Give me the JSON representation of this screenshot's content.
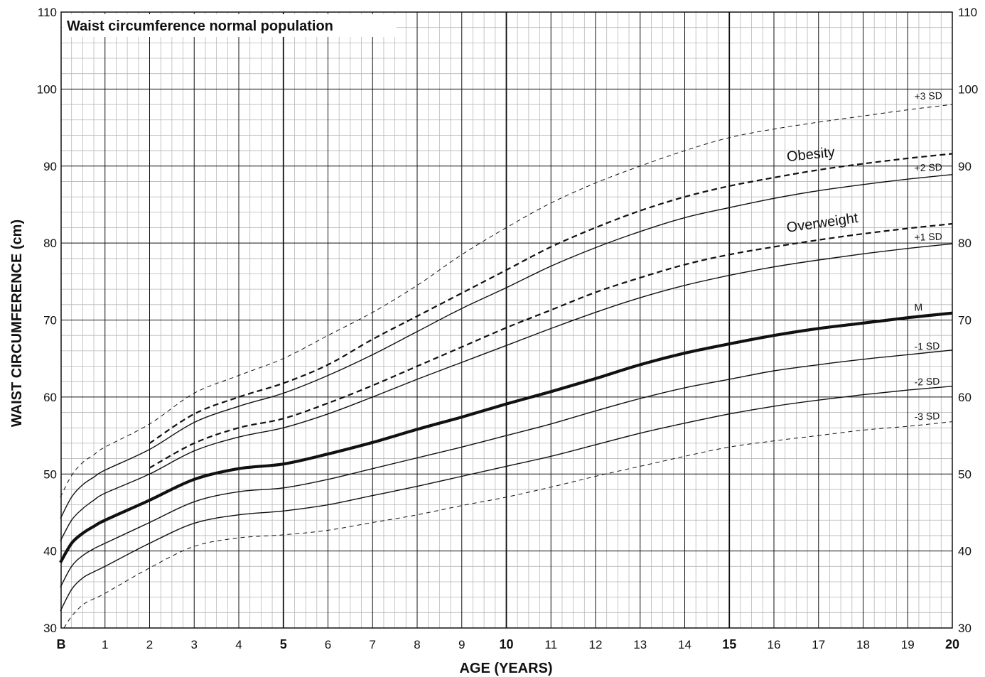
{
  "chart_data": {
    "type": "line",
    "title": "Waist circumference normal population",
    "xlabel": "AGE (YEARS)",
    "ylabel": "WAIST CIRCUMFERENCE (cm)",
    "xlim": [
      0,
      20
    ],
    "ylim": [
      30,
      110
    ],
    "grid": true,
    "x_ticks": [
      {
        "v": 0,
        "label": "B",
        "bold": true
      },
      {
        "v": 1,
        "label": "1"
      },
      {
        "v": 2,
        "label": "2"
      },
      {
        "v": 3,
        "label": "3"
      },
      {
        "v": 4,
        "label": "4"
      },
      {
        "v": 5,
        "label": "5",
        "bold": true
      },
      {
        "v": 6,
        "label": "6"
      },
      {
        "v": 7,
        "label": "7"
      },
      {
        "v": 8,
        "label": "8"
      },
      {
        "v": 9,
        "label": "9"
      },
      {
        "v": 10,
        "label": "10",
        "bold": true
      },
      {
        "v": 11,
        "label": "11"
      },
      {
        "v": 12,
        "label": "12"
      },
      {
        "v": 13,
        "label": "13"
      },
      {
        "v": 14,
        "label": "14"
      },
      {
        "v": 15,
        "label": "15",
        "bold": true
      },
      {
        "v": 16,
        "label": "16"
      },
      {
        "v": 17,
        "label": "17"
      },
      {
        "v": 18,
        "label": "18"
      },
      {
        "v": 19,
        "label": "19"
      },
      {
        "v": 20,
        "label": "20",
        "bold": true
      }
    ],
    "y_ticks": [
      "30",
      "40",
      "50",
      "60",
      "70",
      "80",
      "90",
      "100",
      "110"
    ],
    "series": [
      {
        "name": "+3 SD",
        "style": "dashed-thin",
        "label_at": [
          19.15,
          98.6
        ],
        "x": [
          0.0,
          0.25,
          0.5,
          0.75,
          1,
          2,
          3,
          4,
          5,
          6,
          7,
          8,
          9,
          10,
          11,
          12,
          13,
          14,
          15,
          16,
          17,
          18,
          19,
          20
        ],
        "y": [
          47,
          49.8,
          51.5,
          52.5,
          53.5,
          56.5,
          60.5,
          62.8,
          65,
          68,
          71,
          74.5,
          78.5,
          82,
          85.2,
          87.8,
          90,
          92,
          93.7,
          94.8,
          95.7,
          96.5,
          97.3,
          98
        ]
      },
      {
        "name": "Obesity",
        "style": "dashed-thick",
        "label_at": [
          16.3,
          90.6
        ],
        "label_rot": -6,
        "x": [
          2,
          3,
          4,
          5,
          6,
          7,
          8,
          9,
          10,
          11,
          12,
          13,
          14,
          15,
          16,
          17,
          18,
          19,
          20
        ],
        "y": [
          54,
          57.8,
          60,
          61.8,
          64.2,
          67.5,
          70.5,
          73.5,
          76.5,
          79.5,
          82,
          84.2,
          86,
          87.4,
          88.5,
          89.5,
          90.3,
          91,
          91.6
        ]
      },
      {
        "name": "+2 SD",
        "style": "solid",
        "label_at": [
          19.15,
          89.3
        ],
        "x": [
          0.0,
          0.25,
          0.5,
          0.75,
          1,
          2,
          3,
          4,
          5,
          6,
          7,
          8,
          9,
          10,
          11,
          12,
          13,
          14,
          15,
          16,
          17,
          18,
          19,
          20
        ],
        "y": [
          44.2,
          47,
          48.6,
          49.6,
          50.5,
          53.2,
          56.7,
          58.8,
          60.5,
          62.8,
          65.5,
          68.5,
          71.5,
          74.2,
          77,
          79.4,
          81.5,
          83.3,
          84.6,
          85.8,
          86.8,
          87.6,
          88.3,
          88.9
        ]
      },
      {
        "name": "Overweight",
        "style": "dashed-thick",
        "label_at": [
          16.3,
          81.4
        ],
        "label_rot": -8,
        "x": [
          2,
          3,
          4,
          5,
          6,
          7,
          8,
          9,
          10,
          11,
          12,
          13,
          14,
          15,
          16,
          17,
          18,
          19,
          20
        ],
        "y": [
          50.8,
          54,
          56,
          57.2,
          59.2,
          61.5,
          64,
          66.5,
          69,
          71.3,
          73.6,
          75.5,
          77.2,
          78.5,
          79.5,
          80.4,
          81.2,
          81.9,
          82.5
        ]
      },
      {
        "name": "+1 SD",
        "style": "solid",
        "label_at": [
          19.15,
          80.3
        ],
        "x": [
          0.0,
          0.25,
          0.5,
          0.75,
          1,
          2,
          3,
          4,
          5,
          6,
          7,
          8,
          9,
          10,
          11,
          12,
          13,
          14,
          15,
          16,
          17,
          18,
          19,
          20
        ],
        "y": [
          41.3,
          44,
          45.5,
          46.6,
          47.5,
          50,
          53,
          54.8,
          56,
          57.8,
          60,
          62.3,
          64.5,
          66.7,
          68.9,
          71,
          72.9,
          74.5,
          75.8,
          76.9,
          77.8,
          78.6,
          79.3,
          79.9
        ]
      },
      {
        "name": "M",
        "style": "thick",
        "label_at": [
          19.15,
          71.2
        ],
        "x": [
          0.0,
          0.25,
          0.5,
          0.75,
          1,
          2,
          3,
          4,
          5,
          6,
          7,
          8,
          9,
          10,
          11,
          12,
          13,
          14,
          15,
          16,
          17,
          18,
          19,
          20
        ],
        "y": [
          38.5,
          41,
          42.3,
          43.2,
          44,
          46.6,
          49.3,
          50.7,
          51.3,
          52.6,
          54.1,
          55.8,
          57.4,
          59.1,
          60.7,
          62.4,
          64.2,
          65.7,
          66.9,
          68,
          68.9,
          69.6,
          70.3,
          70.9
        ]
      },
      {
        "name": "-1 SD",
        "style": "solid",
        "label_at": [
          19.15,
          66.1
        ],
        "x": [
          0.0,
          0.25,
          0.5,
          0.75,
          1,
          2,
          3,
          4,
          5,
          6,
          7,
          8,
          9,
          10,
          11,
          12,
          13,
          14,
          15,
          16,
          17,
          18,
          19,
          20
        ],
        "y": [
          35.3,
          38,
          39.4,
          40.3,
          41,
          43.7,
          46.4,
          47.7,
          48.2,
          49.3,
          50.7,
          52.1,
          53.5,
          55,
          56.5,
          58.2,
          59.8,
          61.2,
          62.3,
          63.4,
          64.2,
          64.9,
          65.5,
          66.1
        ]
      },
      {
        "name": "-2 SD",
        "style": "solid",
        "label_at": [
          19.15,
          61.5
        ],
        "x": [
          0.0,
          0.25,
          0.5,
          0.75,
          1,
          2,
          3,
          4,
          5,
          6,
          7,
          8,
          9,
          10,
          11,
          12,
          13,
          14,
          15,
          16,
          17,
          18,
          19,
          20
        ],
        "y": [
          32.2,
          35,
          36.5,
          37.3,
          38,
          41,
          43.6,
          44.7,
          45.2,
          46,
          47.2,
          48.4,
          49.7,
          51,
          52.3,
          53.8,
          55.3,
          56.6,
          57.8,
          58.8,
          59.6,
          60.3,
          60.9,
          61.4
        ]
      },
      {
        "name": "-3 SD",
        "style": "dashed-thin",
        "label_at": [
          19.15,
          57.0
        ],
        "x": [
          0.08,
          0.25,
          0.5,
          0.75,
          1,
          2,
          3,
          4,
          5,
          6,
          7,
          8,
          9,
          10,
          11,
          12,
          13,
          14,
          15,
          16,
          17,
          18,
          19,
          20
        ],
        "y": [
          30,
          31.5,
          33,
          33.8,
          34.5,
          37.8,
          40.6,
          41.7,
          42.1,
          42.7,
          43.7,
          44.7,
          45.9,
          47,
          48.3,
          49.7,
          51,
          52.3,
          53.5,
          54.3,
          55,
          55.7,
          56.2,
          56.8
        ]
      }
    ]
  }
}
